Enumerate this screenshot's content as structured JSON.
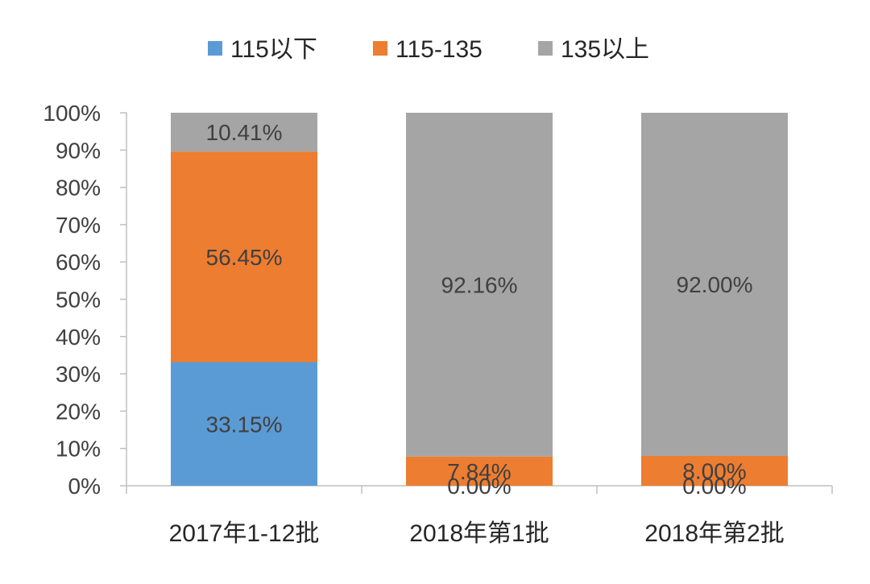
{
  "chart_data": {
    "type": "bar",
    "stacked": true,
    "categories": [
      "2017年1-12批",
      "2018年第1批",
      "2018年第2批"
    ],
    "series": [
      {
        "name": "115以下",
        "color": "#5B9BD5",
        "values": [
          33.15,
          0.0,
          0.0
        ],
        "labels": [
          "33.15%",
          "0.00%",
          "0.00%"
        ]
      },
      {
        "name": "115-135",
        "color": "#ED7D31",
        "values": [
          56.45,
          7.84,
          8.0
        ],
        "labels": [
          "56.45%",
          "7.84%",
          "8.00%"
        ]
      },
      {
        "name": "135以上",
        "color": "#A5A5A5",
        "values": [
          10.41,
          92.16,
          92.0
        ],
        "labels": [
          "10.41%",
          "92.16%",
          "92.00%"
        ]
      }
    ],
    "ylim": [
      0,
      100
    ],
    "yticks": [
      "0%",
      "10%",
      "20%",
      "30%",
      "40%",
      "50%",
      "60%",
      "70%",
      "80%",
      "90%",
      "100%"
    ],
    "legend_position": "top",
    "grid": false,
    "title": "",
    "xlabel": "",
    "ylabel": ""
  }
}
